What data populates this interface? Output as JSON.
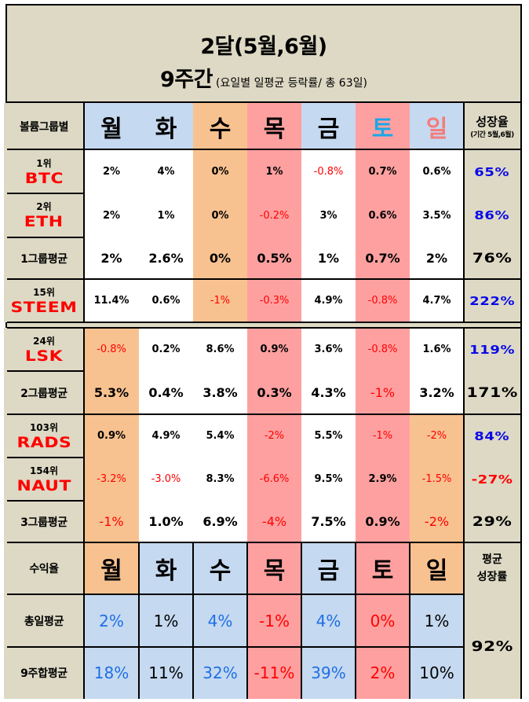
{
  "title": {
    "line1": "2달(5월,6월)",
    "line2_big": "9주간",
    "line2_small": "(요일별 일평균 등락률/ 총 63일)"
  },
  "colors": {
    "beige": "#DDD9C4",
    "blue": "#C5D9F0",
    "orange": "#F8C290",
    "pink": "#FFA0A0",
    "negative_text": "#FF0000",
    "growth_blue_text": "#0A0AE8",
    "positive_blue_text": "#1F6FE5",
    "sat_header_text": "#1AA7E8",
    "sun_header_text": "#F47C7C"
  },
  "header": {
    "label": "볼륨그룹별",
    "days": [
      "월",
      "화",
      "수",
      "목",
      "금",
      "토",
      "일"
    ],
    "growth_title": "성장율",
    "growth_sub": "(기간 5월,6월)"
  },
  "rows": [
    {
      "rank": "1위",
      "ticker": "BTC",
      "values": [
        "2%",
        "4%",
        "0%",
        "1%",
        "-0.8%",
        "0.7%",
        "0.6%"
      ],
      "growth": "65%"
    },
    {
      "rank": "2위",
      "ticker": "ETH",
      "values": [
        "2%",
        "1%",
        "0%",
        "-0.2%",
        "3%",
        "0.6%",
        "3.5%"
      ],
      "growth": "86%"
    },
    {
      "label": "1그룹평균",
      "values": [
        "2%",
        "2.6%",
        "0%",
        "0.5%",
        "1%",
        "0.7%",
        "2%"
      ],
      "growth": "76%"
    },
    {
      "rank": "15위",
      "ticker": "STEEM",
      "values": [
        "11.4%",
        "0.6%",
        "-1%",
        "-0.3%",
        "4.9%",
        "-0.8%",
        "4.7%"
      ],
      "growth": "222%"
    },
    {
      "rank": "24위",
      "ticker": "LSK",
      "values": [
        "-0.8%",
        "0.2%",
        "8.6%",
        "0.9%",
        "3.6%",
        "-0.8%",
        "1.6%"
      ],
      "growth": "119%"
    },
    {
      "label": "2그룹평균",
      "values": [
        "5.3%",
        "0.4%",
        "3.8%",
        "0.3%",
        "4.3%",
        "-1%",
        "3.2%"
      ],
      "growth": "171%"
    },
    {
      "rank": "103위",
      "ticker": "RADS",
      "values": [
        "0.9%",
        "4.9%",
        "5.4%",
        "-2%",
        "5.5%",
        "-1%",
        "-2%"
      ],
      "growth": "84%"
    },
    {
      "rank": "154위",
      "ticker": "NAUT",
      "values": [
        "-3.2%",
        "-3.0%",
        "8.3%",
        "-6.6%",
        "9.5%",
        "2.9%",
        "-1.5%"
      ],
      "growth": "-27%"
    },
    {
      "label": "3그룹평균",
      "values": [
        "-1%",
        "1.0%",
        "6.9%",
        "-4%",
        "7.5%",
        "0.9%",
        "-2%"
      ],
      "growth": "29%"
    }
  ],
  "summary": {
    "header_label": "수익율",
    "days": [
      "월",
      "화",
      "수",
      "목",
      "금",
      "토",
      "일"
    ],
    "growth_title_1": "평균",
    "growth_title_2": "성장률",
    "daily_avg": {
      "label": "총일평균",
      "values": [
        "2%",
        "1%",
        "4%",
        "-1%",
        "4%",
        "0%",
        "1%"
      ]
    },
    "nine_week": {
      "label": "9주합평균",
      "values": [
        "18%",
        "11%",
        "32%",
        "-11%",
        "39%",
        "2%",
        "10%"
      ]
    },
    "avg_growth": "92%"
  }
}
